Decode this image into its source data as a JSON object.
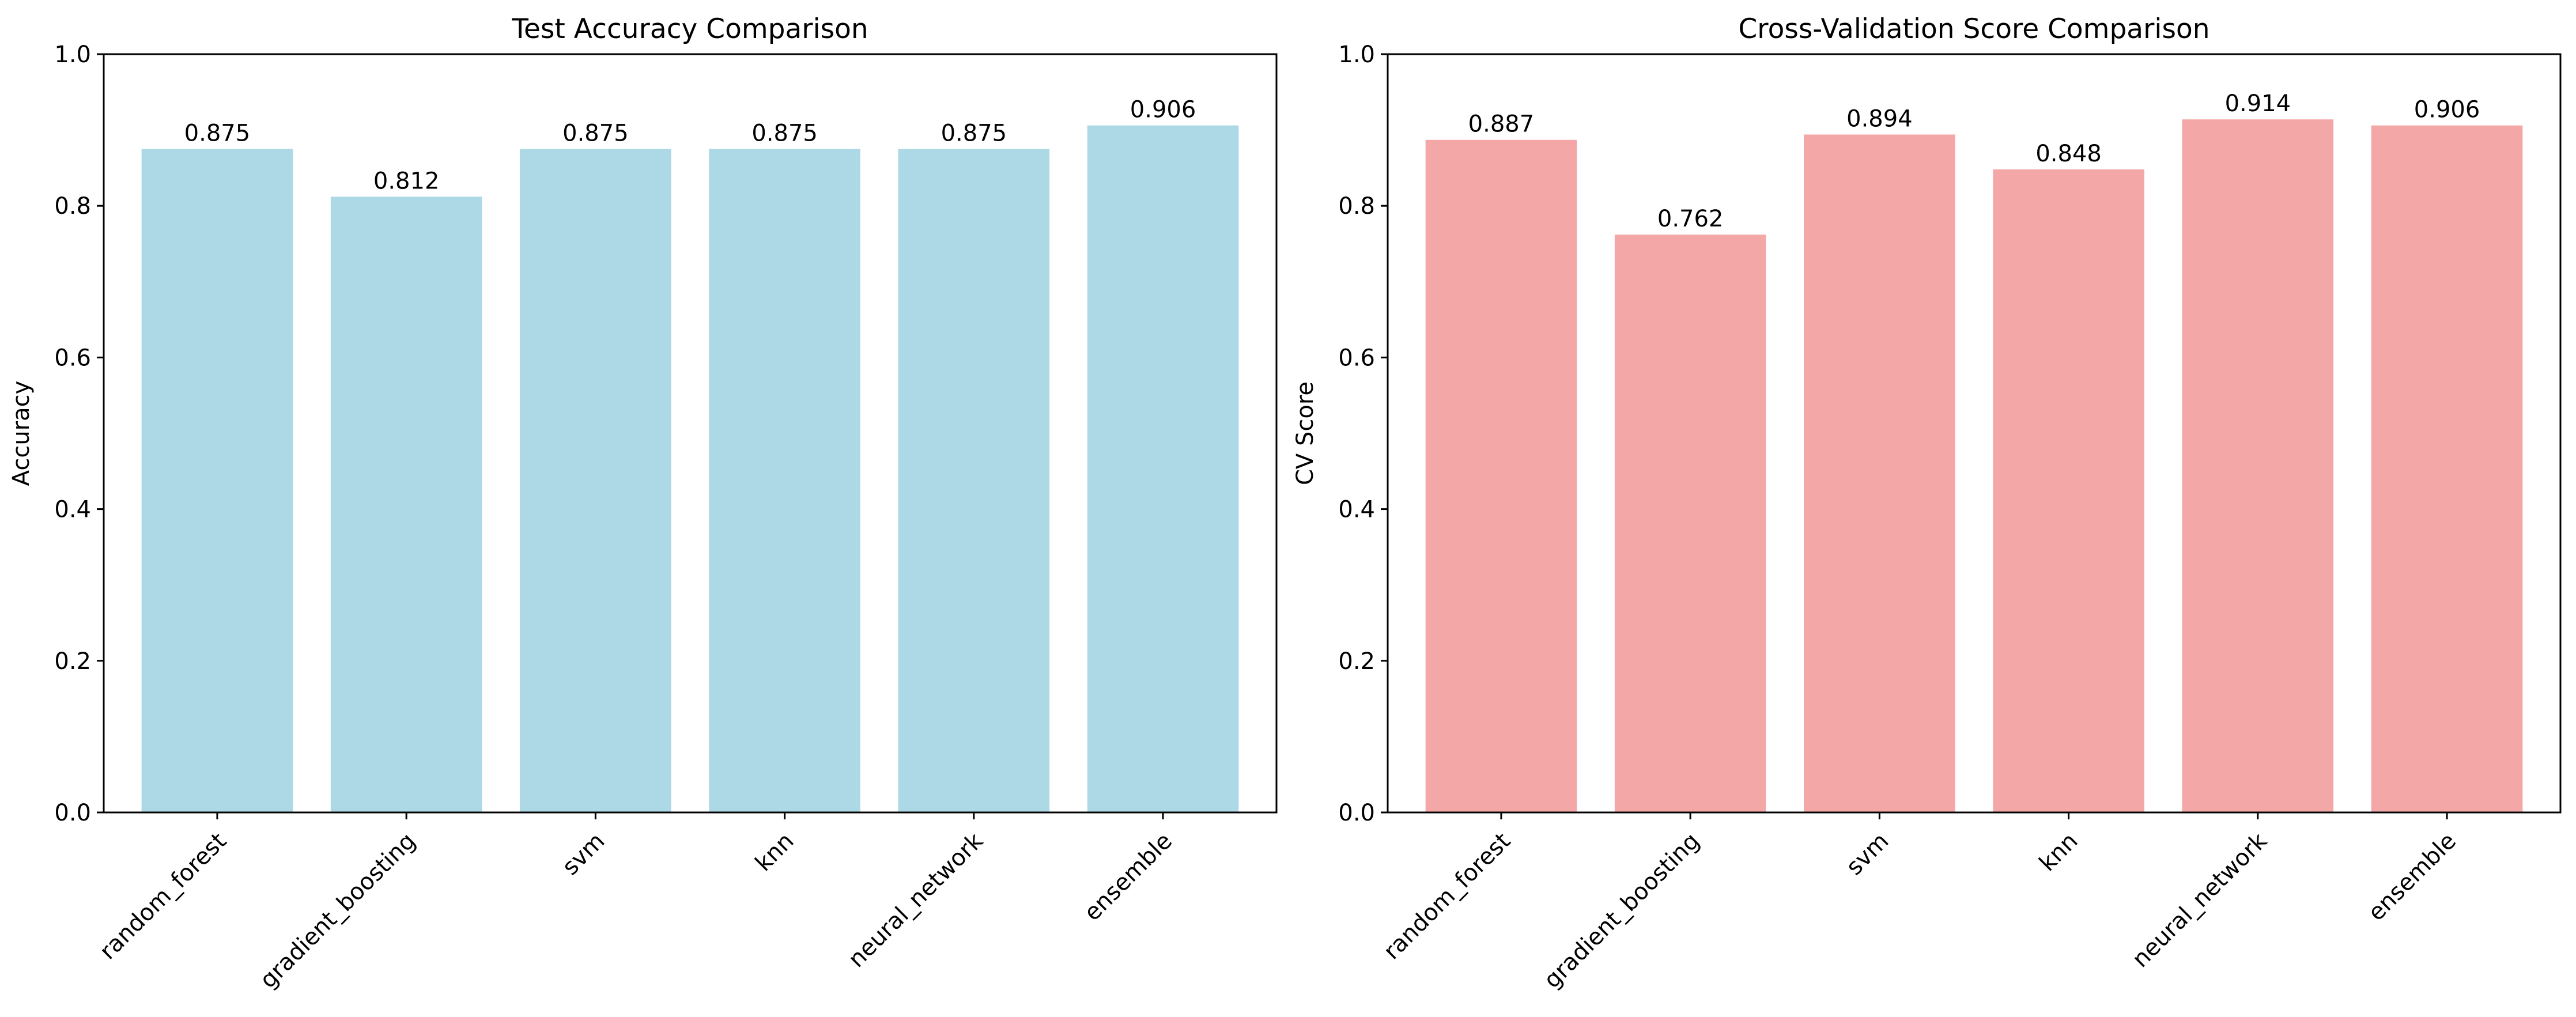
{
  "chart_data": [
    {
      "type": "bar",
      "title": "Test Accuracy Comparison",
      "xlabel": "",
      "ylabel": "Accuracy",
      "categories": [
        "random_forest",
        "gradient_boosting",
        "svm",
        "knn",
        "neural_network",
        "ensemble"
      ],
      "values": [
        0.875,
        0.812,
        0.875,
        0.875,
        0.875,
        0.906
      ],
      "value_labels": [
        "0.875",
        "0.812",
        "0.875",
        "0.875",
        "0.875",
        "0.906"
      ],
      "ylim": [
        0,
        1.0
      ],
      "yticks": [
        0.0,
        0.2,
        0.4,
        0.6,
        0.8,
        1.0
      ],
      "ytick_labels": [
        "0.0",
        "0.2",
        "0.4",
        "0.6",
        "0.8",
        "1.0"
      ],
      "color": "#add8e6",
      "grid": false
    },
    {
      "type": "bar",
      "title": "Cross-Validation Score Comparison",
      "xlabel": "",
      "ylabel": "CV Score",
      "categories": [
        "random_forest",
        "gradient_boosting",
        "svm",
        "knn",
        "neural_network",
        "ensemble"
      ],
      "values": [
        0.887,
        0.762,
        0.894,
        0.848,
        0.914,
        0.906
      ],
      "value_labels": [
        "0.887",
        "0.762",
        "0.894",
        "0.848",
        "0.914",
        "0.906"
      ],
      "ylim": [
        0,
        1.0
      ],
      "yticks": [
        0.0,
        0.2,
        0.4,
        0.6,
        0.8,
        1.0
      ],
      "ytick_labels": [
        "0.0",
        "0.2",
        "0.4",
        "0.6",
        "0.8",
        "1.0"
      ],
      "color": "#f4a7a7",
      "grid": false
    }
  ]
}
